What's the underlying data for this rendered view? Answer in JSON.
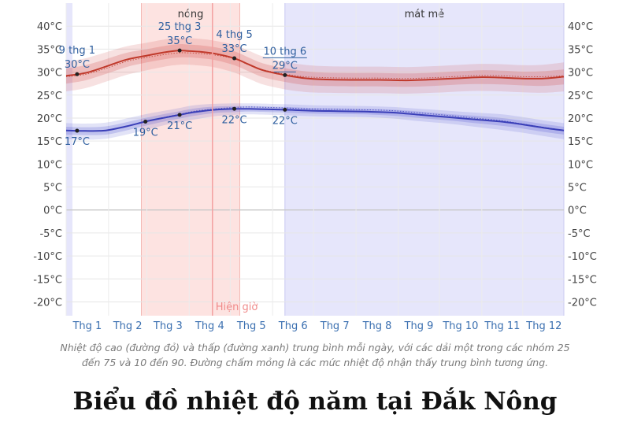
{
  "title": "Biểu đồ nhiệt độ năm tại Đắk Nông",
  "caption_line1": "Nhiệt độ cao (đường đỏ) và thấp (đường xanh) trung bình mỗi ngày, với các dải một trong các nhóm 25",
  "caption_line2": "đến 75 và 10 đến 90. Đường chấm mỏng là các mức nhiệt độ nhận thấy trung bình tương ứng.",
  "colors": {
    "high": "#c0392b",
    "low": "#3a3fb8",
    "hot_band": "#fde3e1",
    "cool_band": "#e6e6fb",
    "now_line": "#f4a0a0"
  },
  "chart_data": {
    "type": "line",
    "x_unit": "day_of_year",
    "ylim": [
      -23,
      45
    ],
    "yticks": [
      40,
      35,
      30,
      25,
      20,
      15,
      10,
      5,
      0,
      -5,
      -10,
      -15,
      -20
    ],
    "ytick_labels": [
      "40°C",
      "35°C",
      "30°C",
      "25°C",
      "20°C",
      "15°C",
      "10°C",
      "5°C",
      "0°C",
      "-5°C",
      "-10°C",
      "-15°C",
      "-20°C"
    ],
    "months": [
      "Thg 1",
      "Thg 2",
      "Thg 3",
      "Thg 4",
      "Thg 5",
      "Thg 6",
      "Thg 7",
      "Thg 8",
      "Thg 9",
      "Thg 10",
      "Thg 11",
      "Thg 12"
    ],
    "seasons": [
      {
        "label": "nóng",
        "start_day": 56,
        "end_day": 128,
        "kind": "hot"
      },
      {
        "label": "mát mẻ",
        "start_day": 161,
        "end_day": 365,
        "kind": "cool"
      }
    ],
    "now": {
      "label": "Hiện giờ",
      "day": 108
    },
    "series": [
      {
        "key": "high",
        "x": [
          1,
          15,
          30,
          45,
          60,
          75,
          84,
          90,
          100,
          110,
          124,
          135,
          145,
          160,
          175,
          190,
          210,
          230,
          250,
          270,
          290,
          305,
          320,
          335,
          350,
          365
        ],
        "values": [
          29.2,
          29.8,
          31.2,
          32.7,
          33.6,
          34.4,
          34.7,
          34.6,
          34.4,
          34.0,
          33.0,
          31.6,
          30.4,
          29.4,
          28.7,
          28.4,
          28.3,
          28.3,
          28.2,
          28.4,
          28.7,
          28.9,
          28.8,
          28.6,
          28.6,
          29.0
        ],
        "p25": [
          27.5,
          28.2,
          29.6,
          31.1,
          32.1,
          32.9,
          33.2,
          33.2,
          33.0,
          32.6,
          31.5,
          30.1,
          28.9,
          27.9,
          27.2,
          27.0,
          26.9,
          26.9,
          26.8,
          27.0,
          27.3,
          27.4,
          27.3,
          27.1,
          27.0,
          27.3
        ],
        "p75": [
          30.8,
          31.5,
          32.8,
          34.2,
          35.0,
          35.8,
          36.1,
          36.0,
          35.8,
          35.4,
          34.5,
          33.1,
          31.9,
          30.9,
          30.2,
          29.9,
          29.8,
          29.8,
          29.7,
          29.9,
          30.2,
          30.4,
          30.3,
          30.1,
          30.2,
          30.6
        ],
        "p10": [
          25.8,
          26.5,
          27.9,
          29.4,
          30.4,
          31.3,
          31.6,
          31.6,
          31.4,
          31.0,
          29.9,
          28.5,
          27.3,
          26.3,
          25.7,
          25.5,
          25.4,
          25.4,
          25.3,
          25.5,
          25.8,
          25.9,
          25.8,
          25.6,
          25.5,
          25.8
        ],
        "p90": [
          32.3,
          33.0,
          34.3,
          35.6,
          36.4,
          37.2,
          37.4,
          37.4,
          37.2,
          36.8,
          35.9,
          34.6,
          33.4,
          32.3,
          31.6,
          31.3,
          31.2,
          31.2,
          31.1,
          31.3,
          31.6,
          31.8,
          31.7,
          31.5,
          31.6,
          32.1
        ],
        "feels": [
          29.0,
          29.5,
          30.8,
          32.3,
          33.2,
          33.9,
          34.2,
          34.2,
          34.0,
          33.7,
          32.9,
          31.5,
          30.5,
          29.6,
          29.0,
          28.8,
          28.7,
          28.7,
          28.6,
          28.8,
          29.1,
          29.3,
          29.2,
          29.0,
          29.0,
          29.2
        ]
      },
      {
        "key": "low",
        "x": [
          1,
          15,
          30,
          45,
          60,
          75,
          84,
          95,
          110,
          124,
          135,
          150,
          162,
          180,
          200,
          220,
          240,
          260,
          280,
          300,
          320,
          335,
          350,
          365
        ],
        "values": [
          17.3,
          17.2,
          17.3,
          18.2,
          19.3,
          20.2,
          20.7,
          21.3,
          21.8,
          22.0,
          22.0,
          21.9,
          21.8,
          21.6,
          21.5,
          21.4,
          21.2,
          20.7,
          20.2,
          19.7,
          19.2,
          18.6,
          17.9,
          17.3
        ],
        "p25": [
          16.4,
          16.3,
          16.4,
          17.3,
          18.4,
          19.4,
          19.9,
          20.5,
          21.1,
          21.3,
          21.4,
          21.3,
          21.2,
          21.0,
          20.9,
          20.8,
          20.5,
          20.0,
          19.5,
          18.9,
          18.3,
          17.7,
          17.0,
          16.4
        ],
        "p75": [
          18.1,
          18.0,
          18.2,
          19.1,
          20.1,
          21.0,
          21.5,
          22.1,
          22.5,
          22.6,
          22.6,
          22.5,
          22.4,
          22.2,
          22.1,
          22.0,
          21.8,
          21.4,
          20.9,
          20.5,
          20.0,
          19.4,
          18.7,
          18.1
        ],
        "p10": [
          15.4,
          15.3,
          15.5,
          16.4,
          17.5,
          18.6,
          19.1,
          19.7,
          20.4,
          20.7,
          20.8,
          20.7,
          20.6,
          20.4,
          20.3,
          20.2,
          19.9,
          19.3,
          18.8,
          18.1,
          17.4,
          16.8,
          16.1,
          15.4
        ],
        "p90": [
          18.9,
          18.8,
          19.0,
          19.9,
          20.9,
          21.7,
          22.2,
          22.8,
          23.1,
          23.2,
          23.2,
          23.1,
          23.0,
          22.8,
          22.7,
          22.6,
          22.4,
          22.0,
          21.6,
          21.2,
          20.8,
          20.2,
          19.5,
          18.9
        ],
        "feels": [
          17.3,
          17.2,
          17.3,
          18.2,
          19.3,
          20.3,
          20.8,
          21.5,
          22.0,
          22.3,
          22.4,
          22.3,
          22.2,
          22.0,
          21.9,
          21.8,
          21.6,
          21.1,
          20.6,
          20.0,
          19.4,
          18.7,
          18.0,
          17.3
        ]
      }
    ],
    "annotations": [
      {
        "series": "high",
        "day": 9,
        "value": 30,
        "date": "9 thg 1",
        "temp": "30°C",
        "pos": "above"
      },
      {
        "series": "high",
        "day": 84,
        "value": 35,
        "date": "25 thg 3",
        "temp": "35°C",
        "pos": "above"
      },
      {
        "series": "high",
        "day": 124,
        "value": 33,
        "date": "4 thg 5",
        "temp": "33°C",
        "pos": "above"
      },
      {
        "series": "high",
        "day": 161,
        "value": 29,
        "date": "10 thg 6",
        "temp": "29°C",
        "pos": "above",
        "underline": true
      },
      {
        "series": "low",
        "day": 9,
        "value": 17,
        "date": "",
        "temp": "17°C",
        "pos": "below"
      },
      {
        "series": "low",
        "day": 59,
        "value": 19,
        "date": "",
        "temp": "19°C",
        "pos": "below"
      },
      {
        "series": "low",
        "day": 84,
        "value": 21,
        "date": "",
        "temp": "21°C",
        "pos": "below"
      },
      {
        "series": "low",
        "day": 124,
        "value": 22,
        "date": "",
        "temp": "22°C",
        "pos": "below"
      },
      {
        "series": "low",
        "day": 161,
        "value": 22,
        "date": "",
        "temp": "22°C",
        "pos": "below"
      }
    ]
  }
}
